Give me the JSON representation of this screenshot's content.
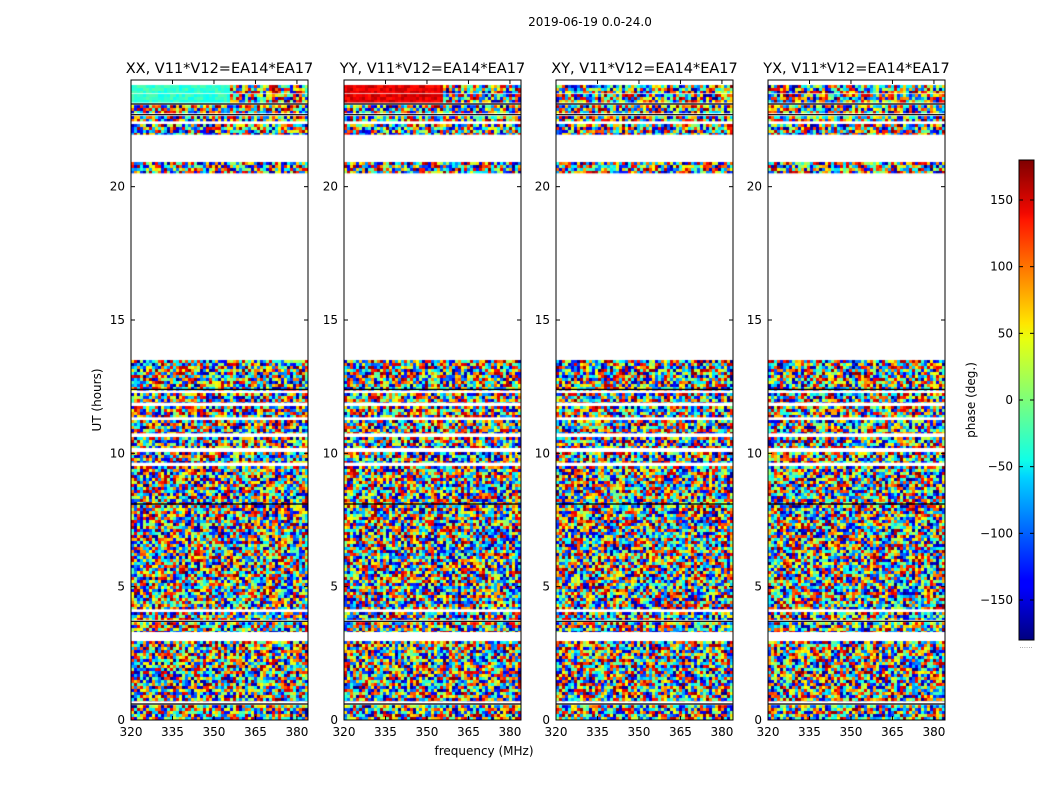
{
  "chart_data": {
    "type": "heatmap",
    "suptitle": "2019-06-19 0.0-24.0",
    "xlabel": "frequency (MHz)",
    "ylabel": "UT (hours)",
    "xlim": [
      320,
      384
    ],
    "ylim": [
      0,
      24
    ],
    "xticks": [
      320,
      335,
      350,
      365,
      380
    ],
    "yticks": [
      0,
      5,
      10,
      15,
      20
    ],
    "colorbar": {
      "label": "phase (deg.)",
      "range": [
        -180,
        180
      ],
      "ticks": [
        -150,
        -100,
        -50,
        0,
        50,
        100,
        150
      ],
      "tick_labels": [
        "−150",
        "−100",
        "−50",
        "0",
        "50",
        "100",
        "150"
      ],
      "colormap": "jet"
    },
    "panels": [
      {
        "title": "XX, V11*V12=EA14*EA17",
        "pol": "XX"
      },
      {
        "title": "YY, V11*V12=EA14*EA17",
        "pol": "YY"
      },
      {
        "title": "XY, V11*V12=EA14*EA17",
        "pol": "XY"
      },
      {
        "title": "YX, V11*V12=EA14*EA17",
        "pol": "YX"
      }
    ],
    "data_segments_hours": [
      [
        0.0,
        0.55
      ],
      [
        0.7,
        2.95
      ],
      [
        3.3,
        3.65
      ],
      [
        3.75,
        4.05
      ],
      [
        4.15,
        9.5
      ],
      [
        9.65,
        10.05
      ],
      [
        10.2,
        10.6
      ],
      [
        10.75,
        11.25
      ],
      [
        11.35,
        11.75
      ],
      [
        11.9,
        12.25
      ],
      [
        12.35,
        13.5
      ],
      [
        20.5,
        20.9
      ],
      [
        21.95,
        22.35
      ],
      [
        22.45,
        22.65
      ],
      [
        22.75,
        23.05
      ],
      [
        23.15,
        23.45
      ],
      [
        23.5,
        23.8
      ]
    ]
  }
}
